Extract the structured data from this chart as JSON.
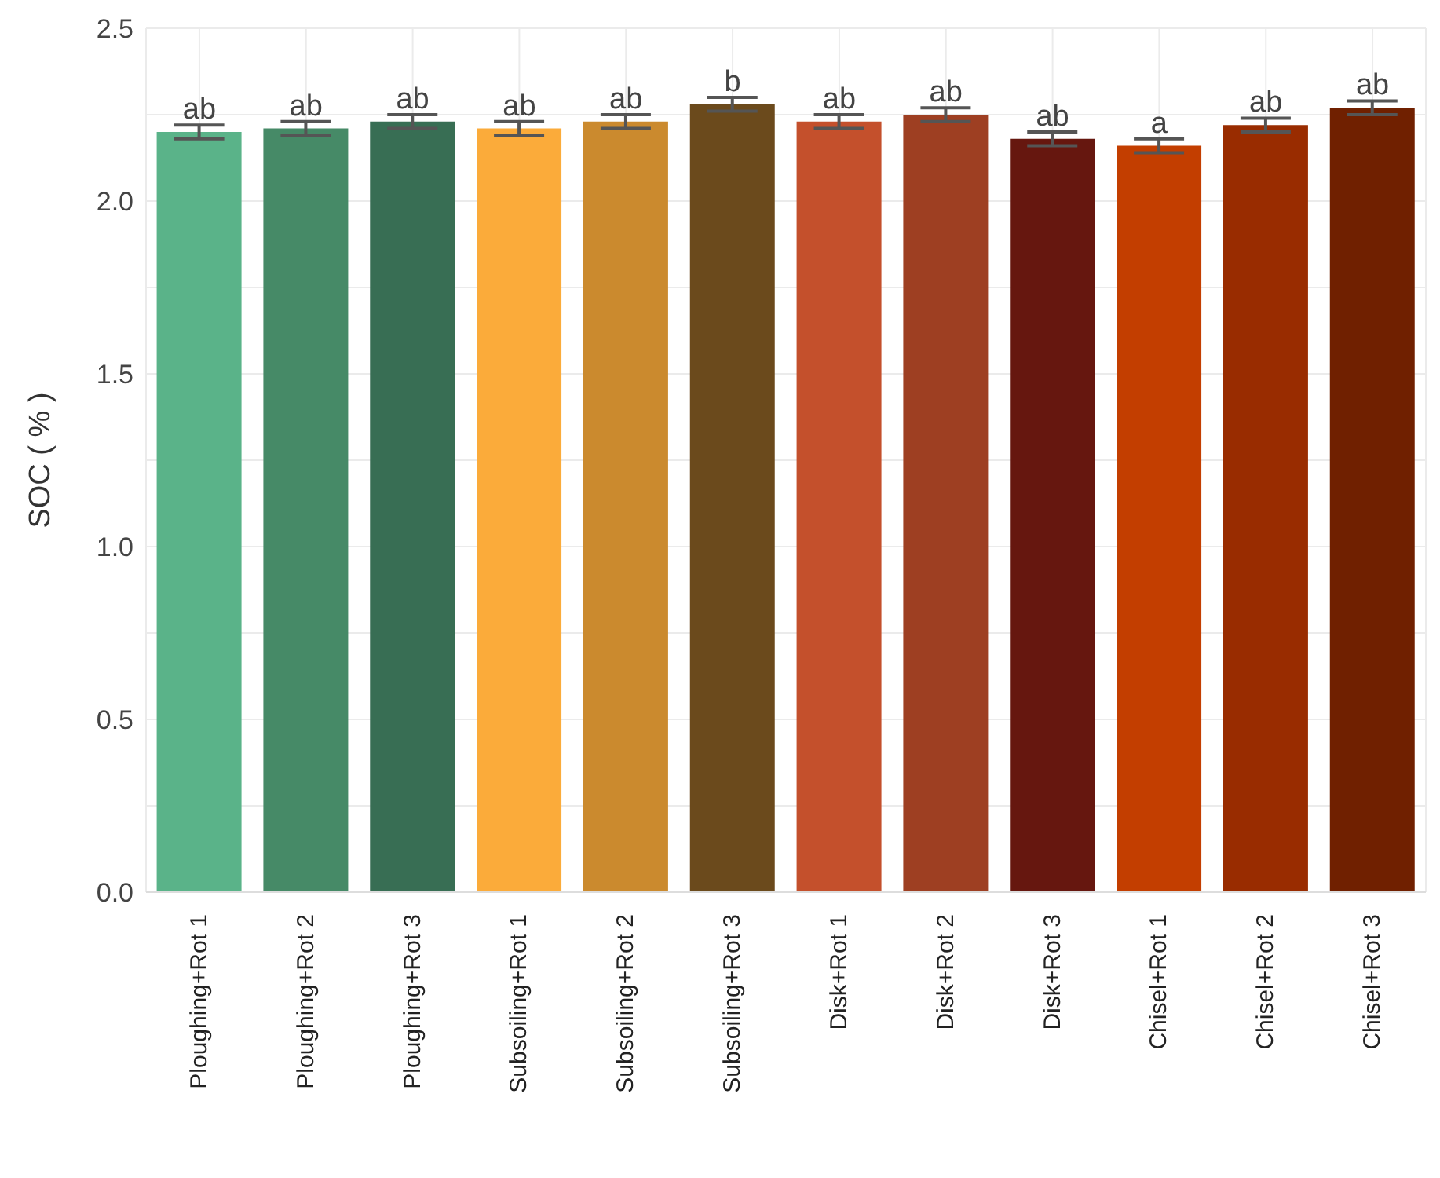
{
  "chart_data": {
    "type": "bar",
    "ylabel": "SOC ( % )",
    "categories": [
      "Ploughing+Rot 1",
      "Ploughing+Rot 2",
      "Ploughing+Rot 3",
      "Subsoiling+Rot 1",
      "Subsoiling+Rot 2",
      "Subsoiling+Rot 3",
      "Disk+Rot 1",
      "Disk+Rot 2",
      "Disk+Rot 3",
      "Chisel+Rot 1",
      "Chisel+Rot 2",
      "Chisel+Rot 3"
    ],
    "values": [
      2.2,
      2.21,
      2.23,
      2.21,
      2.23,
      2.28,
      2.23,
      2.25,
      2.18,
      2.16,
      2.22,
      2.27
    ],
    "errors": [
      0.02,
      0.02,
      0.02,
      0.02,
      0.02,
      0.02,
      0.02,
      0.02,
      0.02,
      0.02,
      0.02,
      0.02
    ],
    "colors": [
      "#5ab389",
      "#468a67",
      "#386e54",
      "#fbab3a",
      "#cb8a2e",
      "#6b4a1c",
      "#c4502c",
      "#9e3f22",
      "#66170f",
      "#c33e00",
      "#992c00",
      "#702000"
    ],
    "annotations": [
      {
        "text": "ab",
        "x": "Ploughing+Rot 1",
        "y": 2.22
      },
      {
        "text": "ab",
        "x": "Ploughing+Rot 2",
        "y": 2.23
      },
      {
        "text": "ab",
        "x": "Ploughing+Rot 3",
        "y": 2.25
      },
      {
        "text": "ab",
        "x": "Subsoiling+Rot 1",
        "y": 2.23
      },
      {
        "text": "ab",
        "x": "Subsoiling+Rot 2",
        "y": 2.25
      },
      {
        "text": "b",
        "x": "Subsoiling+Rot 3",
        "y": 2.3
      },
      {
        "text": "ab",
        "x": "Disk+Rot 1",
        "y": 2.25
      },
      {
        "text": "ab",
        "x": "Disk+Rot 2",
        "y": 2.27
      },
      {
        "text": "ab",
        "x": "Disk+Rot 3",
        "y": 2.2
      },
      {
        "text": "a",
        "x": "Chisel+Rot 1",
        "y": 2.18
      },
      {
        "text": "ab",
        "x": "Chisel+Rot 2",
        "y": 2.24
      },
      {
        "text": "ab",
        "x": "Chisel+Rot 3",
        "y": 2.29
      }
    ],
    "ylim": [
      0,
      2.5
    ],
    "yticks": [
      {
        "value": 0,
        "label": "0.0"
      },
      {
        "value": 0.25,
        "label": null
      },
      0.5,
      {
        "value": 0.75,
        "label": null
      },
      {
        "value": 1,
        "label": "1.0"
      },
      {
        "value": 1.25,
        "label": null
      },
      1.5,
      {
        "value": 1.75,
        "label": null
      },
      {
        "value": 2,
        "label": "2.0"
      },
      {
        "value": 2.25,
        "label": null
      },
      2.5
    ],
    "grid": true,
    "legend": false
  }
}
